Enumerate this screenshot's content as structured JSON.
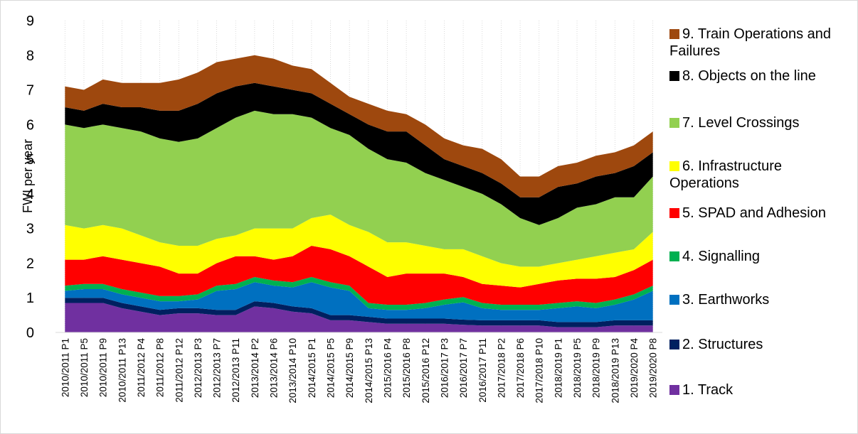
{
  "chart_data": {
    "type": "stacked-area",
    "y_label": "FWI per year",
    "categories": [
      "2010/2011 P1",
      "2010/2011 P5",
      "2010/2011 P9",
      "2010/2011 P13",
      "2011/2012 P4",
      "2011/2012 P8",
      "2011/2012 P12",
      "2012/2013 P3",
      "2012/2013 P7",
      "2012/2013 P11",
      "2013/2014 P2",
      "2013/2014 P6",
      "2013/2014 P10",
      "2014/2015 P1",
      "2014/2015 P5",
      "2014/2015 P9",
      "2014/2015 P13",
      "2015/2016 P4",
      "2015/2016 P8",
      "2015/2016 P12",
      "2016/2017 P3",
      "2016/2017 P7",
      "2016/2017 P11",
      "2017/2018 P2",
      "2017/2018 P6",
      "2017/2018 P10",
      "2018/2019 P1",
      "2018/2019 P5",
      "2018/2019 P9",
      "2018/2019 P13",
      "2019/2020 P4",
      "2019/2020 P8"
    ],
    "ylim": [
      0,
      9
    ],
    "yticks": [
      0,
      1,
      2,
      3,
      4,
      5,
      6,
      7,
      8,
      9
    ],
    "grid": true,
    "series": [
      {
        "name": "1. Track",
        "color": "#7030a0",
        "values": [
          0.85,
          0.85,
          0.85,
          0.7,
          0.6,
          0.5,
          0.55,
          0.55,
          0.5,
          0.5,
          0.75,
          0.7,
          0.6,
          0.55,
          0.35,
          0.35,
          0.3,
          0.25,
          0.25,
          0.25,
          0.25,
          0.22,
          0.2,
          0.2,
          0.2,
          0.2,
          0.15,
          0.15,
          0.15,
          0.2,
          0.2,
          0.2
        ]
      },
      {
        "name": "2. Structures",
        "color": "#002060",
        "values": [
          0.15,
          0.15,
          0.15,
          0.15,
          0.15,
          0.15,
          0.15,
          0.15,
          0.15,
          0.15,
          0.15,
          0.15,
          0.15,
          0.15,
          0.15,
          0.15,
          0.15,
          0.15,
          0.15,
          0.15,
          0.15,
          0.15,
          0.15,
          0.15,
          0.15,
          0.15,
          0.15,
          0.15,
          0.15,
          0.15,
          0.15,
          0.15
        ]
      },
      {
        "name": "3. Earthworks",
        "color": "#0070c0",
        "values": [
          0.2,
          0.25,
          0.25,
          0.25,
          0.25,
          0.25,
          0.2,
          0.25,
          0.55,
          0.6,
          0.55,
          0.5,
          0.55,
          0.75,
          0.8,
          0.7,
          0.25,
          0.25,
          0.25,
          0.3,
          0.4,
          0.5,
          0.35,
          0.3,
          0.3,
          0.3,
          0.4,
          0.45,
          0.4,
          0.45,
          0.6,
          0.85
        ]
      },
      {
        "name": "4. Signalling",
        "color": "#00b050",
        "values": [
          0.15,
          0.15,
          0.15,
          0.15,
          0.15,
          0.15,
          0.15,
          0.15,
          0.15,
          0.15,
          0.15,
          0.15,
          0.15,
          0.15,
          0.15,
          0.15,
          0.15,
          0.15,
          0.15,
          0.15,
          0.15,
          0.15,
          0.15,
          0.15,
          0.15,
          0.15,
          0.15,
          0.15,
          0.15,
          0.15,
          0.15,
          0.15
        ]
      },
      {
        "name": "5. SPAD and Adhesion",
        "color": "#ff0000",
        "values": [
          0.75,
          0.7,
          0.8,
          0.85,
          0.85,
          0.85,
          0.65,
          0.6,
          0.65,
          0.8,
          0.6,
          0.6,
          0.75,
          0.9,
          0.95,
          0.85,
          1.05,
          0.8,
          0.9,
          0.85,
          0.75,
          0.58,
          0.55,
          0.55,
          0.5,
          0.6,
          0.65,
          0.65,
          0.7,
          0.65,
          0.7,
          0.75
        ]
      },
      {
        "name": "6. Infrastructure Operations",
        "color": "#ffff00",
        "values": [
          1.0,
          0.9,
          0.9,
          0.9,
          0.8,
          0.7,
          0.8,
          0.8,
          0.7,
          0.6,
          0.8,
          0.9,
          0.8,
          0.8,
          1.0,
          0.9,
          1.0,
          1.0,
          0.9,
          0.8,
          0.7,
          0.8,
          0.8,
          0.65,
          0.6,
          0.5,
          0.5,
          0.55,
          0.65,
          0.7,
          0.6,
          0.8
        ]
      },
      {
        "name": "7. Level Crossings",
        "color": "#92d050",
        "values": [
          2.9,
          2.9,
          2.9,
          2.9,
          3.0,
          3.0,
          3.0,
          3.1,
          3.2,
          3.4,
          3.4,
          3.3,
          3.3,
          2.9,
          2.5,
          2.6,
          2.4,
          2.4,
          2.3,
          2.1,
          2.0,
          1.8,
          1.8,
          1.7,
          1.4,
          1.2,
          1.3,
          1.5,
          1.5,
          1.6,
          1.5,
          1.6
        ]
      },
      {
        "name": "8. Objects on the line",
        "color": "#000000",
        "values": [
          0.5,
          0.5,
          0.6,
          0.6,
          0.7,
          0.8,
          0.9,
          1.0,
          1.0,
          0.9,
          0.8,
          0.8,
          0.7,
          0.7,
          0.7,
          0.6,
          0.7,
          0.8,
          0.9,
          0.8,
          0.6,
          0.6,
          0.6,
          0.6,
          0.6,
          0.8,
          0.9,
          0.7,
          0.8,
          0.7,
          0.9,
          0.7
        ]
      },
      {
        "name": "9. Train Operations and Failures",
        "color": "#9e480e",
        "values": [
          0.6,
          0.6,
          0.7,
          0.7,
          0.7,
          0.8,
          0.9,
          0.9,
          0.9,
          0.8,
          0.8,
          0.8,
          0.7,
          0.7,
          0.6,
          0.5,
          0.6,
          0.6,
          0.5,
          0.6,
          0.6,
          0.6,
          0.7,
          0.7,
          0.6,
          0.6,
          0.6,
          0.6,
          0.6,
          0.6,
          0.6,
          0.6
        ]
      }
    ]
  }
}
